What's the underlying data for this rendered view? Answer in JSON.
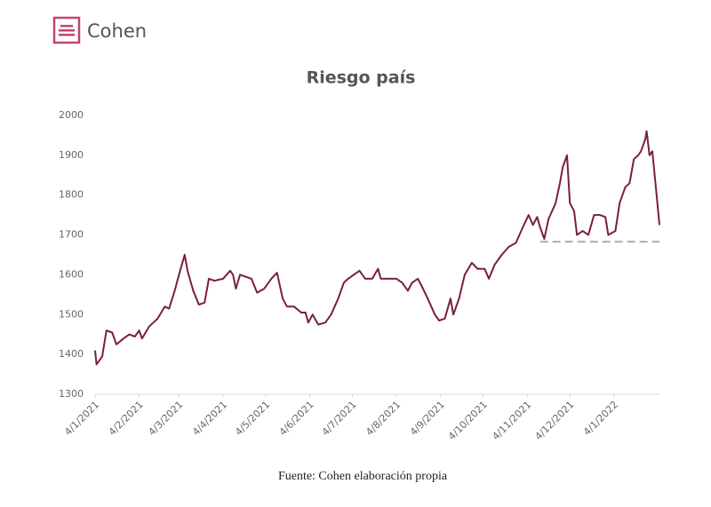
{
  "header": {
    "brand": "Cohen"
  },
  "chart_data": {
    "type": "line",
    "title": "Riesgo país",
    "x": [
      "2021-01-04",
      "2021-01-05",
      "2021-01-09",
      "2021-01-12",
      "2021-01-16",
      "2021-01-19",
      "2021-01-24",
      "2021-01-28",
      "2021-02-01",
      "2021-02-04",
      "2021-02-06",
      "2021-02-11",
      "2021-02-17",
      "2021-02-22",
      "2021-02-25",
      "2021-03-01",
      "2021-03-04",
      "2021-03-08",
      "2021-03-10",
      "2021-03-14",
      "2021-03-18",
      "2021-03-22",
      "2021-03-25",
      "2021-03-29",
      "2021-04-04",
      "2021-04-09",
      "2021-04-11",
      "2021-04-13",
      "2021-04-16",
      "2021-04-20",
      "2021-04-24",
      "2021-04-28",
      "2021-05-03",
      "2021-05-08",
      "2021-05-12",
      "2021-05-16",
      "2021-05-19",
      "2021-05-24",
      "2021-05-29",
      "2021-06-01",
      "2021-06-03",
      "2021-06-06",
      "2021-06-10",
      "2021-06-15",
      "2021-06-19",
      "2021-06-24",
      "2021-06-28",
      "2021-07-01",
      "2021-07-05",
      "2021-07-09",
      "2021-07-13",
      "2021-07-18",
      "2021-07-22",
      "2021-07-24",
      "2021-07-29",
      "2021-08-04",
      "2021-08-08",
      "2021-08-12",
      "2021-08-15",
      "2021-08-19",
      "2021-08-22",
      "2021-08-26",
      "2021-08-31",
      "2021-09-03",
      "2021-09-07",
      "2021-09-11",
      "2021-09-13",
      "2021-09-17",
      "2021-09-21",
      "2021-09-26",
      "2021-09-30",
      "2021-10-05",
      "2021-10-08",
      "2021-10-12",
      "2021-10-17",
      "2021-10-22",
      "2021-10-27",
      "2021-11-01",
      "2021-11-05",
      "2021-11-08",
      "2021-11-11",
      "2021-11-13",
      "2021-11-16",
      "2021-11-19",
      "2021-11-24",
      "2021-11-27",
      "2021-11-29",
      "2021-12-02",
      "2021-12-04",
      "2021-12-07",
      "2021-12-09",
      "2021-12-13",
      "2021-12-17",
      "2021-12-21",
      "2021-12-25",
      "2021-12-29",
      "2021-12-31",
      "2022-01-05",
      "2022-01-08",
      "2022-01-12",
      "2022-01-15",
      "2022-01-18",
      "2022-01-21",
      "2022-01-23",
      "2022-01-26",
      "2022-01-27",
      "2022-01-29",
      "2022-01-31",
      "2022-02-03",
      "2022-02-05"
    ],
    "series": [
      {
        "color": "#7a1f3d",
        "values": [
          1410,
          1375,
          1395,
          1460,
          1455,
          1425,
          1440,
          1450,
          1445,
          1460,
          1440,
          1470,
          1490,
          1520,
          1515,
          1560,
          1600,
          1650,
          1610,
          1560,
          1525,
          1530,
          1590,
          1585,
          1590,
          1610,
          1600,
          1565,
          1600,
          1595,
          1590,
          1555,
          1565,
          1590,
          1605,
          1540,
          1520,
          1520,
          1505,
          1505,
          1480,
          1500,
          1475,
          1480,
          1500,
          1540,
          1580,
          1590,
          1600,
          1610,
          1590,
          1590,
          1615,
          1590,
          1590,
          1590,
          1580,
          1560,
          1580,
          1590,
          1570,
          1540,
          1500,
          1485,
          1490,
          1540,
          1500,
          1540,
          1600,
          1630,
          1615,
          1615,
          1590,
          1625,
          1650,
          1670,
          1680,
          1720,
          1750,
          1725,
          1745,
          1720,
          1690,
          1740,
          1780,
          1830,
          1870,
          1900,
          1780,
          1760,
          1700,
          1710,
          1700,
          1750,
          1750,
          1745,
          1700,
          1710,
          1780,
          1820,
          1830,
          1890,
          1900,
          1910,
          1940,
          1960,
          1900,
          1910,
          1800,
          1725
        ]
      }
    ],
    "reference_line": {
      "value": 1683,
      "x": [
        "2021-11-13",
        "2022-02-05"
      ],
      "color": "#aaaaaa"
    },
    "xlim": [
      "2021-01-04",
      "2022-02-05"
    ],
    "xticks": [
      {
        "value": "2021-01-04",
        "label": "4/1/2021"
      },
      {
        "value": "2021-02-04",
        "label": "4/2/2021"
      },
      {
        "value": "2021-03-04",
        "label": "4/3/2021"
      },
      {
        "value": "2021-04-04",
        "label": "4/4/2021"
      },
      {
        "value": "2021-05-04",
        "label": "4/5/2021"
      },
      {
        "value": "2021-06-04",
        "label": "4/6/2021"
      },
      {
        "value": "2021-07-04",
        "label": "4/7/2021"
      },
      {
        "value": "2021-08-04",
        "label": "4/8/2021"
      },
      {
        "value": "2021-09-04",
        "label": "4/9/2021"
      },
      {
        "value": "2021-10-04",
        "label": "4/10/2021"
      },
      {
        "value": "2021-11-04",
        "label": "4/11/2021"
      },
      {
        "value": "2021-12-04",
        "label": "4/12/2021"
      },
      {
        "value": "2022-01-04",
        "label": "4/1/2022"
      }
    ],
    "ylim": [
      1300,
      2000
    ],
    "yticks": [
      1300,
      1400,
      1500,
      1600,
      1700,
      1800,
      1900,
      2000
    ],
    "source": "Fuente: Cohen elaboración propia"
  }
}
